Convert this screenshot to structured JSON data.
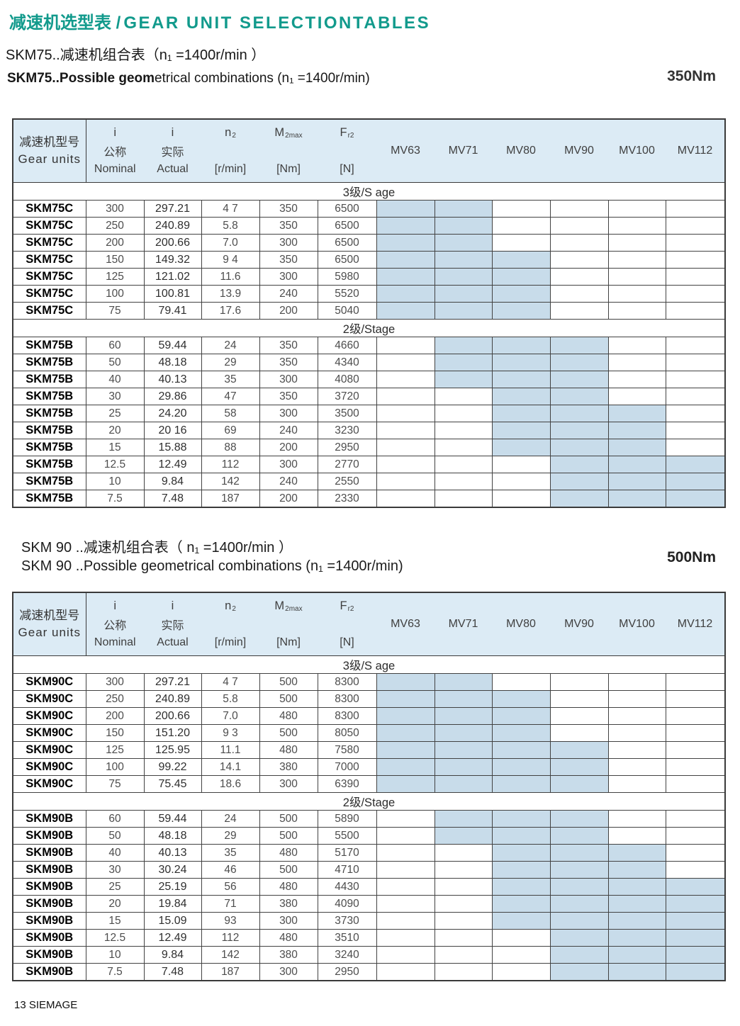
{
  "page": {
    "title_cn": "减速机选型表 /",
    "title_en": "GEAR UNIT SELECTIONTABLES",
    "footer": "13 SIEMAGE",
    "accent_color": "#129a8c",
    "shade_color": "#c8dcea",
    "header_bg": "#dcebf5"
  },
  "table_header": {
    "gear_units_cn": "减速机型号",
    "gear_units_en": "Gear units",
    "ratio_cols": [
      {
        "sym": "i",
        "cn": "公称",
        "en": "Nominal"
      },
      {
        "sym": "i",
        "cn": "实际",
        "en": "Actual"
      }
    ],
    "value_cols": [
      {
        "base": "n",
        "sub": "2",
        "unit": "[r/min]"
      },
      {
        "base": "M",
        "sub": "2max",
        "unit": "[Nm]"
      },
      {
        "base": "F",
        "sub": "r2",
        "unit": "[N]"
      }
    ],
    "motor_cols": [
      "MV63",
      "MV71",
      "MV80",
      "MV90",
      "MV100",
      "MV112"
    ]
  },
  "tables": [
    {
      "subtitle_cn": "SKM75..减速机组合表（n₁ =1400r/min ）",
      "subtitle_en_bold": "SKM75..Possible geom",
      "subtitle_en_rest": "etrical combinations  (n₁ =1400r/min)",
      "torque": "350Nm",
      "sections": [
        {
          "label": "3级/S age",
          "rows": [
            {
              "model": "SKM75C",
              "nominal": "300",
              "actual": "297.21",
              "n2": "4 7",
              "m2max": "350",
              "fr2": "6500",
              "mv": [
                1,
                1,
                0,
                0,
                0,
                0
              ]
            },
            {
              "model": "SKM75C",
              "nominal": "250",
              "actual": "240.89",
              "n2": "5.8",
              "m2max": "350",
              "fr2": "6500",
              "mv": [
                1,
                1,
                0,
                0,
                0,
                0
              ]
            },
            {
              "model": "SKM75C",
              "nominal": "200",
              "actual": "200.66",
              "n2": "7.0",
              "m2max": "300",
              "fr2": "6500",
              "mv": [
                1,
                1,
                0,
                0,
                0,
                0
              ]
            },
            {
              "model": "SKM75C",
              "nominal": "150",
              "actual": "149.32",
              "n2": "9 4",
              "m2max": "350",
              "fr2": "6500",
              "mv": [
                1,
                1,
                1,
                0,
                0,
                0
              ]
            },
            {
              "model": "SKM75C",
              "nominal": "125",
              "actual": "121.02",
              "n2": "11.6",
              "m2max": "300",
              "fr2": "5980",
              "mv": [
                1,
                1,
                1,
                0,
                0,
                0
              ]
            },
            {
              "model": "SKM75C",
              "nominal": "100",
              "actual": "100.81",
              "n2": "13.9",
              "m2max": "240",
              "fr2": "5520",
              "mv": [
                1,
                1,
                1,
                0,
                0,
                0
              ]
            },
            {
              "model": "SKM75C",
              "nominal": "75",
              "actual": "79.41",
              "n2": "17.6",
              "m2max": "200",
              "fr2": "5040",
              "mv": [
                1,
                1,
                1,
                0,
                0,
                0
              ]
            }
          ]
        },
        {
          "label": "2级/Stage",
          "rows": [
            {
              "model": "SKM75B",
              "nominal": "60",
              "actual": "59.44",
              "n2": "24",
              "m2max": "350",
              "fr2": "4660",
              "mv": [
                0,
                1,
                1,
                1,
                0,
                0
              ]
            },
            {
              "model": "SKM75B",
              "nominal": "50",
              "actual": "48.18",
              "n2": "29",
              "m2max": "350",
              "fr2": "4340",
              "mv": [
                0,
                1,
                1,
                1,
                0,
                0
              ]
            },
            {
              "model": "SKM75B",
              "nominal": "40",
              "actual": "40.13",
              "n2": "35",
              "m2max": "300",
              "fr2": "4080",
              "mv": [
                0,
                1,
                1,
                1,
                0,
                0
              ]
            },
            {
              "model": "SKM75B",
              "nominal": "30",
              "actual": "29.86",
              "n2": "47",
              "m2max": "350",
              "fr2": "3720",
              "mv": [
                0,
                0,
                1,
                1,
                0,
                0
              ]
            },
            {
              "model": "SKM75B",
              "nominal": "25",
              "actual": "24.20",
              "n2": "58",
              "m2max": "300",
              "fr2": "3500",
              "mv": [
                0,
                0,
                1,
                1,
                1,
                0
              ]
            },
            {
              "model": "SKM75B",
              "nominal": "20",
              "actual": "20 16",
              "n2": "69",
              "m2max": "240",
              "fr2": "3230",
              "mv": [
                0,
                0,
                1,
                1,
                1,
                0
              ]
            },
            {
              "model": "SKM75B",
              "nominal": "15",
              "actual": "15.88",
              "n2": "88",
              "m2max": "200",
              "fr2": "2950",
              "mv": [
                0,
                0,
                1,
                1,
                1,
                0
              ]
            },
            {
              "model": "SKM75B",
              "nominal": "12.5",
              "actual": "12.49",
              "n2": "112",
              "m2max": "300",
              "fr2": "2770",
              "mv": [
                0,
                0,
                0,
                1,
                1,
                1
              ]
            },
            {
              "model": "SKM75B",
              "nominal": "10",
              "actual": "9.84",
              "n2": "142",
              "m2max": "240",
              "fr2": "2550",
              "mv": [
                0,
                0,
                0,
                1,
                1,
                1
              ]
            },
            {
              "model": "SKM75B",
              "nominal": "7.5",
              "actual": "7.48",
              "n2": "187",
              "m2max": "200",
              "fr2": "2330",
              "mv": [
                0,
                0,
                0,
                1,
                1,
                1
              ]
            }
          ]
        }
      ]
    },
    {
      "subtitle_cn": "SKM 90 ..减速机组合表（ n₁ =1400r/min ）",
      "subtitle_en_bold": "",
      "subtitle_en_rest": "SKM 90 ..Possible geometrical combinations (n₁ =1400r/min)",
      "torque": "500Nm",
      "sections": [
        {
          "label": "3级/S age",
          "rows": [
            {
              "model": "SKM90C",
              "nominal": "300",
              "actual": "297.21",
              "n2": "4 7",
              "m2max": "500",
              "fr2": "8300",
              "mv": [
                1,
                1,
                0,
                0,
                0,
                0
              ]
            },
            {
              "model": "SKM90C",
              "nominal": "250",
              "actual": "240.89",
              "n2": "5.8",
              "m2max": "500",
              "fr2": "8300",
              "mv": [
                1,
                1,
                1,
                0,
                0,
                0
              ]
            },
            {
              "model": "SKM90C",
              "nominal": "200",
              "actual": "200.66",
              "n2": "7.0",
              "m2max": "480",
              "fr2": "8300",
              "mv": [
                1,
                1,
                1,
                0,
                0,
                0
              ]
            },
            {
              "model": "SKM90C",
              "nominal": "150",
              "actual": "151.20",
              "n2": "9 3",
              "m2max": "500",
              "fr2": "8050",
              "mv": [
                1,
                1,
                1,
                0,
                0,
                0
              ]
            },
            {
              "model": "SKM90C",
              "nominal": "125",
              "actual": "125.95",
              "n2": "11.1",
              "m2max": "480",
              "fr2": "7580",
              "mv": [
                1,
                1,
                1,
                1,
                0,
                0
              ]
            },
            {
              "model": "SKM90C",
              "nominal": "100",
              "actual": "99.22",
              "n2": "14.1",
              "m2max": "380",
              "fr2": "7000",
              "mv": [
                1,
                1,
                1,
                1,
                0,
                0
              ]
            },
            {
              "model": "SKM90C",
              "nominal": "75",
              "actual": "75.45",
              "n2": "18.6",
              "m2max": "300",
              "fr2": "6390",
              "mv": [
                1,
                1,
                1,
                1,
                0,
                0
              ]
            }
          ]
        },
        {
          "label": "2级/Stage",
          "rows": [
            {
              "model": "SKM90B",
              "nominal": "60",
              "actual": "59.44",
              "n2": "24",
              "m2max": "500",
              "fr2": "5890",
              "mv": [
                0,
                1,
                1,
                1,
                0,
                0
              ]
            },
            {
              "model": "SKM90B",
              "nominal": "50",
              "actual": "48.18",
              "n2": "29",
              "m2max": "500",
              "fr2": "5500",
              "mv": [
                0,
                1,
                1,
                1,
                0,
                0
              ]
            },
            {
              "model": "SKM90B",
              "nominal": "40",
              "actual": "40.13",
              "n2": "35",
              "m2max": "480",
              "fr2": "5170",
              "mv": [
                0,
                0,
                1,
                1,
                1,
                0
              ]
            },
            {
              "model": "SKM90B",
              "nominal": "30",
              "actual": "30.24",
              "n2": "46",
              "m2max": "500",
              "fr2": "4710",
              "mv": [
                0,
                0,
                1,
                1,
                1,
                0
              ]
            },
            {
              "model": "SKM90B",
              "nominal": "25",
              "actual": "25.19",
              "n2": "56",
              "m2max": "480",
              "fr2": "4430",
              "mv": [
                0,
                0,
                1,
                1,
                1,
                1
              ]
            },
            {
              "model": "SKM90B",
              "nominal": "20",
              "actual": "19.84",
              "n2": "71",
              "m2max": "380",
              "fr2": "4090",
              "mv": [
                0,
                0,
                1,
                1,
                1,
                1
              ]
            },
            {
              "model": "SKM90B",
              "nominal": "15",
              "actual": "15.09",
              "n2": "93",
              "m2max": "300",
              "fr2": "3730",
              "mv": [
                0,
                0,
                1,
                1,
                1,
                1
              ]
            },
            {
              "model": "SKM90B",
              "nominal": "12.5",
              "actual": "12.49",
              "n2": "112",
              "m2max": "480",
              "fr2": "3510",
              "mv": [
                0,
                0,
                0,
                1,
                1,
                1
              ]
            },
            {
              "model": "SKM90B",
              "nominal": "10",
              "actual": "9.84",
              "n2": "142",
              "m2max": "380",
              "fr2": "3240",
              "mv": [
                0,
                0,
                0,
                1,
                1,
                1
              ]
            },
            {
              "model": "SKM90B",
              "nominal": "7.5",
              "actual": "7.48",
              "n2": "187",
              "m2max": "300",
              "fr2": "2950",
              "mv": [
                0,
                0,
                0,
                1,
                1,
                1
              ]
            }
          ]
        }
      ]
    }
  ]
}
